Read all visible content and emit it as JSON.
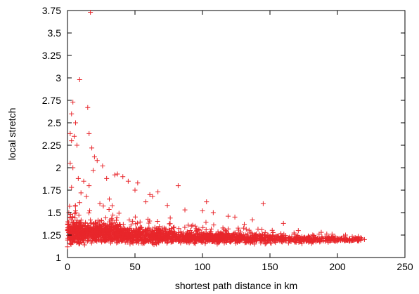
{
  "chart_data": {
    "type": "scatter",
    "xlabel": "shortest path distance in km",
    "ylabel": "local stretch",
    "xlim": [
      0,
      250
    ],
    "ylim": [
      1,
      3.75
    ],
    "xticks": [
      0,
      50,
      100,
      150,
      200,
      250
    ],
    "yticks": [
      1,
      1.25,
      1.5,
      1.75,
      2,
      2.25,
      2.5,
      2.75,
      3,
      3.25,
      3.5,
      3.75
    ],
    "ytick_labels": [
      "1",
      "1.25",
      "1.5",
      "1.75",
      "2",
      "2.25",
      "2.5",
      "2.75",
      "3",
      "3.25",
      "3.5",
      "3.75"
    ],
    "marker": "+",
    "grid": false,
    "colors": {
      "points": "#e8262b",
      "axes": "#000000"
    },
    "series": [
      {
        "points": [
          [
            17,
            3.73
          ],
          [
            9,
            2.98
          ],
          [
            15,
            2.67
          ],
          [
            4,
            2.73
          ],
          [
            3,
            2.6
          ],
          [
            6,
            2.5
          ],
          [
            2,
            2.38
          ],
          [
            16,
            2.38
          ],
          [
            5,
            2.35
          ],
          [
            3,
            2.3
          ],
          [
            18,
            2.22
          ],
          [
            7,
            2.25
          ],
          [
            20,
            2.12
          ],
          [
            22,
            2.08
          ],
          [
            2,
            2.05
          ],
          [
            4,
            2.0
          ],
          [
            26,
            2.02
          ],
          [
            19,
            1.97
          ],
          [
            35,
            1.92
          ],
          [
            37,
            1.93
          ],
          [
            41,
            1.9
          ],
          [
            8,
            1.88
          ],
          [
            12,
            1.85
          ],
          [
            16,
            1.8
          ],
          [
            29,
            1.88
          ],
          [
            45,
            1.85
          ],
          [
            52,
            1.83
          ],
          [
            50,
            1.75
          ],
          [
            61,
            1.7
          ],
          [
            67,
            1.73
          ],
          [
            82,
            1.8
          ],
          [
            58,
            1.62
          ],
          [
            63,
            1.68
          ],
          [
            74,
            1.58
          ],
          [
            87,
            1.53
          ],
          [
            100,
            1.52
          ],
          [
            103,
            1.62
          ],
          [
            145,
            1.6
          ],
          [
            108,
            1.5
          ],
          [
            124,
            1.45
          ],
          [
            137,
            1.42
          ],
          [
            119,
            1.46
          ],
          [
            131,
            1.37
          ],
          [
            160,
            1.38
          ],
          [
            171,
            1.3
          ],
          [
            188,
            1.28
          ],
          [
            196,
            1.26
          ],
          [
            206,
            1.25
          ],
          [
            215,
            1.2
          ],
          [
            220,
            1.2
          ],
          [
            3,
            1.78
          ],
          [
            10,
            1.72
          ],
          [
            14,
            1.68
          ],
          [
            24,
            1.6
          ],
          [
            31,
            1.65
          ],
          [
            1,
            1.5
          ],
          [
            2,
            1.45
          ],
          [
            6,
            1.52
          ]
        ]
      }
    ],
    "density_bands": [
      {
        "x": [
          0,
          10
        ],
        "y_center": 1.28,
        "spread": 0.18,
        "count": 220
      },
      {
        "x": [
          10,
          40
        ],
        "y_center": 1.27,
        "spread": 0.15,
        "count": 520
      },
      {
        "x": [
          40,
          80
        ],
        "y_center": 1.24,
        "spread": 0.12,
        "count": 520
      },
      {
        "x": [
          80,
          120
        ],
        "y_center": 1.22,
        "spread": 0.09,
        "count": 420
      },
      {
        "x": [
          120,
          160
        ],
        "y_center": 1.21,
        "spread": 0.07,
        "count": 320
      },
      {
        "x": [
          160,
          200
        ],
        "y_center": 1.2,
        "spread": 0.05,
        "count": 220
      },
      {
        "x": [
          200,
          218
        ],
        "y_center": 1.2,
        "spread": 0.025,
        "count": 80
      }
    ]
  }
}
